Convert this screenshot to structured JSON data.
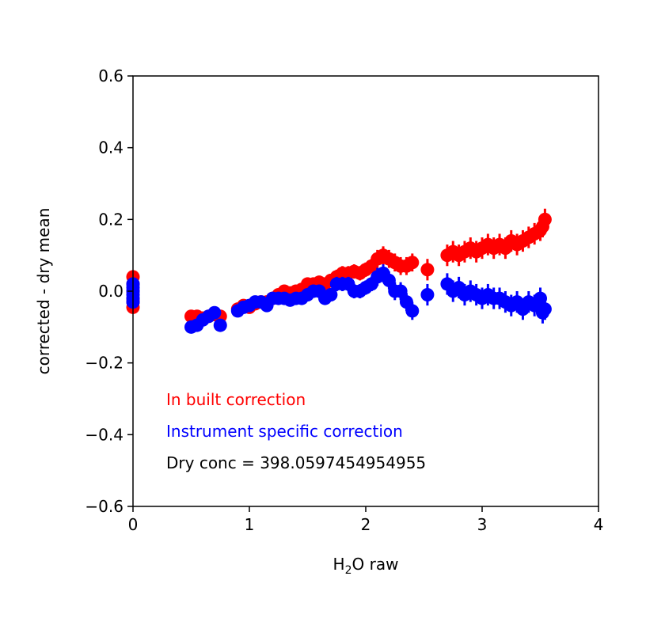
{
  "chart_data": {
    "type": "scatter",
    "title": "",
    "xlabel": "H2O raw",
    "xlabel_main": "H",
    "xlabel_sub": "2",
    "xlabel_rest": "O raw",
    "ylabel": "corrected - dry mean",
    "xlim": [
      0,
      4
    ],
    "ylim": [
      -0.6,
      0.6
    ],
    "xticks": [
      0,
      1,
      2,
      3,
      4
    ],
    "xtick_labels": [
      "0",
      "1",
      "2",
      "3",
      "4"
    ],
    "yticks": [
      -0.6,
      -0.4,
      -0.2,
      0.0,
      0.2,
      0.4,
      0.6
    ],
    "ytick_labels": [
      "−0.6",
      "−0.4",
      "−0.2",
      "0.0",
      "0.2",
      "0.4",
      "0.6"
    ],
    "grid": false,
    "annotations": [
      {
        "text": "In built correction",
        "color": "#ff0000"
      },
      {
        "text": "Instrument specific correction",
        "color": "#0000ff"
      },
      {
        "text": "Dry conc = 398.0597454954955",
        "color": "#000000"
      }
    ],
    "series": [
      {
        "color": "#ff0000",
        "x": [
          0.0,
          0.0,
          0.0,
          0.0,
          0.0,
          0.0,
          0.5,
          0.55,
          0.6,
          0.65,
          0.7,
          0.75,
          0.9,
          0.95,
          1.0,
          1.05,
          1.1,
          1.15,
          1.2,
          1.25,
          1.3,
          1.35,
          1.4,
          1.45,
          1.5,
          1.55,
          1.6,
          1.65,
          1.7,
          1.75,
          1.8,
          1.85,
          1.9,
          1.95,
          2.0,
          2.05,
          2.1,
          2.15,
          2.2,
          2.25,
          2.3,
          2.35,
          2.4,
          2.53,
          2.7,
          2.75,
          2.8,
          2.85,
          2.9,
          2.95,
          3.0,
          3.05,
          3.1,
          3.15,
          3.2,
          3.25,
          3.3,
          3.35,
          3.4,
          3.45,
          3.5,
          3.52,
          3.54
        ],
        "y": [
          0.04,
          0.02,
          0.0,
          -0.02,
          -0.03,
          -0.045,
          -0.07,
          -0.07,
          -0.075,
          -0.07,
          -0.065,
          -0.07,
          -0.05,
          -0.04,
          -0.045,
          -0.035,
          -0.03,
          -0.03,
          -0.02,
          -0.01,
          0.0,
          -0.005,
          0.0,
          0.005,
          0.02,
          0.02,
          0.025,
          0.02,
          0.03,
          0.04,
          0.05,
          0.05,
          0.055,
          0.05,
          0.06,
          0.07,
          0.09,
          0.1,
          0.09,
          0.08,
          0.07,
          0.07,
          0.08,
          0.06,
          0.1,
          0.11,
          0.1,
          0.11,
          0.12,
          0.11,
          0.12,
          0.13,
          0.12,
          0.13,
          0.12,
          0.14,
          0.13,
          0.14,
          0.15,
          0.16,
          0.17,
          0.18,
          0.2
        ],
        "yerr": [
          0.015,
          0.015,
          0.015,
          0.015,
          0.015,
          0.015,
          0.01,
          0.01,
          0.01,
          0.01,
          0.01,
          0.01,
          0.012,
          0.012,
          0.012,
          0.012,
          0.012,
          0.012,
          0.015,
          0.015,
          0.015,
          0.015,
          0.015,
          0.015,
          0.018,
          0.018,
          0.018,
          0.018,
          0.018,
          0.02,
          0.02,
          0.02,
          0.02,
          0.02,
          0.02,
          0.02,
          0.025,
          0.025,
          0.025,
          0.025,
          0.025,
          0.025,
          0.025,
          0.03,
          0.03,
          0.03,
          0.03,
          0.03,
          0.03,
          0.03,
          0.03,
          0.03,
          0.03,
          0.03,
          0.03,
          0.03,
          0.03,
          0.03,
          0.03,
          0.03,
          0.03,
          0.03,
          0.03
        ]
      },
      {
        "color": "#0000ff",
        "x": [
          0.0,
          0.0,
          0.0,
          0.0,
          0.0,
          0.0,
          0.5,
          0.55,
          0.6,
          0.65,
          0.7,
          0.75,
          0.9,
          0.95,
          1.0,
          1.05,
          1.1,
          1.15,
          1.2,
          1.25,
          1.3,
          1.35,
          1.4,
          1.45,
          1.5,
          1.55,
          1.6,
          1.65,
          1.7,
          1.75,
          1.8,
          1.85,
          1.9,
          1.95,
          2.0,
          2.05,
          2.1,
          2.15,
          2.2,
          2.25,
          2.3,
          2.35,
          2.4,
          2.53,
          2.7,
          2.75,
          2.8,
          2.85,
          2.9,
          2.95,
          3.0,
          3.05,
          3.1,
          3.15,
          3.2,
          3.25,
          3.3,
          3.35,
          3.4,
          3.45,
          3.5,
          3.52,
          3.54
        ],
        "y": [
          0.02,
          0.01,
          0.0,
          -0.01,
          -0.02,
          -0.03,
          -0.1,
          -0.095,
          -0.08,
          -0.07,
          -0.06,
          -0.095,
          -0.055,
          -0.045,
          -0.04,
          -0.03,
          -0.03,
          -0.04,
          -0.02,
          -0.02,
          -0.02,
          -0.025,
          -0.02,
          -0.02,
          -0.01,
          0.0,
          0.0,
          -0.02,
          -0.01,
          0.02,
          0.02,
          0.02,
          0.0,
          0.0,
          0.01,
          0.02,
          0.04,
          0.05,
          0.03,
          0.0,
          0.0,
          -0.03,
          -0.055,
          -0.01,
          0.02,
          0.0,
          0.01,
          -0.01,
          0.0,
          -0.01,
          -0.02,
          -0.01,
          -0.02,
          -0.02,
          -0.03,
          -0.04,
          -0.03,
          -0.05,
          -0.03,
          -0.04,
          -0.02,
          -0.06,
          -0.05
        ],
        "yerr": [
          0.015,
          0.015,
          0.015,
          0.015,
          0.015,
          0.015,
          0.01,
          0.01,
          0.01,
          0.01,
          0.01,
          0.01,
          0.012,
          0.012,
          0.012,
          0.012,
          0.012,
          0.012,
          0.015,
          0.015,
          0.015,
          0.015,
          0.015,
          0.015,
          0.018,
          0.018,
          0.018,
          0.018,
          0.018,
          0.02,
          0.02,
          0.02,
          0.02,
          0.02,
          0.02,
          0.02,
          0.025,
          0.025,
          0.025,
          0.025,
          0.025,
          0.025,
          0.025,
          0.03,
          0.03,
          0.03,
          0.03,
          0.03,
          0.03,
          0.03,
          0.03,
          0.03,
          0.03,
          0.03,
          0.03,
          0.03,
          0.03,
          0.03,
          0.03,
          0.03,
          0.03,
          0.03,
          0.03
        ]
      }
    ]
  }
}
